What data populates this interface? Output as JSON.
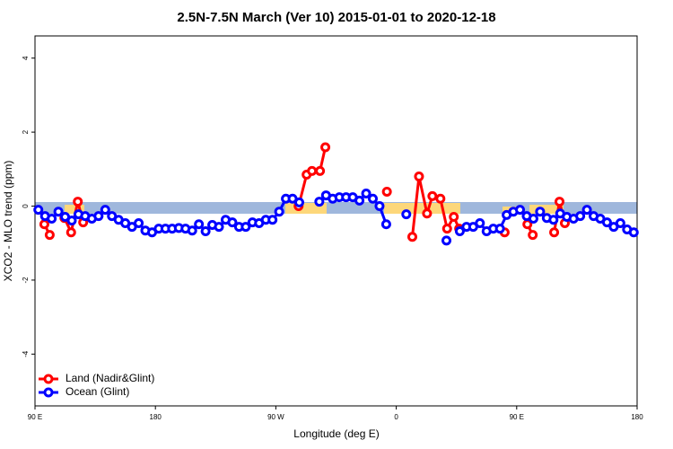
{
  "chart_data": {
    "type": "line",
    "title": "2.5N-7.5N March (Ver 10)   2015-01-01 to 2020-12-18",
    "x_label": "Longitude (deg E)",
    "y_label": "XCO2 - MLO trend (ppm)",
    "xlim": [
      90,
      540
    ],
    "xticks": [
      {
        "value": 90,
        "label": "90 E"
      },
      180,
      {
        "value": 270,
        "label": "90 W"
      },
      {
        "value": 360,
        "label": "0"
      },
      {
        "value": 450,
        "label": "90 E"
      },
      {
        "value": 540,
        "label": "180"
      }
    ],
    "ylim": [
      -5.4,
      4.6
    ],
    "yticks": [
      -4,
      -2,
      0,
      2,
      4
    ],
    "legend": "bottom-left",
    "series": [
      {
        "name": "Land (Nadir&Glint)",
        "color": "#ff0000",
        "x": [
          97,
          101,
          104,
          112,
          117,
          122,
          126,
          200,
          287,
          293,
          297,
          303,
          307,
          330,
          353,
          362,
          372,
          377,
          383,
          387,
          393,
          398,
          403,
          407,
          420,
          441,
          450,
          458,
          462,
          470,
          478,
          482,
          486
        ],
        "values": [
          -0.49,
          -0.78,
          null,
          -0.32,
          -0.71,
          0.12,
          -0.44,
          null,
          0,
          0.85,
          0.95,
          0.95,
          1.59,
          null,
          0.39,
          null,
          -0.83,
          0.8,
          -0.2,
          0.27,
          0.2,
          -0.61,
          -0.29,
          -0.61,
          null,
          -0.71,
          null,
          -0.49,
          -0.78,
          null,
          -0.71,
          0.12,
          -0.46
        ]
      },
      {
        "name": "Ocean (Glint)",
        "color": "#0000ff",
        "x": [
          92.5,
          97.5,
          102.5,
          107.5,
          112.5,
          117.5,
          122.5,
          127.5,
          132.5,
          137.5,
          142.5,
          147.5,
          152.5,
          157.5,
          162.5,
          167.5,
          172.5,
          177.5,
          182.5,
          187.5,
          192.5,
          197.5,
          202.5,
          207.5,
          212.5,
          217.5,
          222.5,
          227.5,
          232.5,
          237.5,
          242.5,
          247.5,
          252.5,
          257.5,
          262.5,
          267.5,
          272.5,
          277.5,
          282.5,
          287.5,
          292.5,
          297.5,
          302.5,
          307.5,
          312.5,
          317.5,
          322.5,
          327.5,
          332.5,
          337.5,
          342.5,
          347.5,
          352.5,
          357.5,
          362.5,
          367.5,
          372.5,
          377.5,
          382.5,
          387.5,
          392.5,
          397.5,
          402.5,
          407.5,
          412.5,
          417.5,
          422.5,
          427.5,
          432.5,
          437.5,
          442.5,
          447.5,
          452.5,
          457.5,
          462.5,
          467.5,
          472.5,
          477.5,
          482.5,
          487.5,
          492.5,
          497.5,
          502.5,
          507.5,
          512.5,
          517.5,
          522.5,
          527.5,
          532.5,
          537.5
        ],
        "values": [
          -0.1,
          -0.27,
          -0.34,
          -0.15,
          -0.29,
          -0.39,
          -0.22,
          -0.27,
          -0.34,
          -0.27,
          -0.1,
          -0.27,
          -0.37,
          -0.46,
          -0.56,
          -0.46,
          -0.66,
          -0.71,
          -0.61,
          -0.61,
          -0.61,
          -0.59,
          -0.61,
          -0.66,
          -0.49,
          -0.68,
          -0.51,
          -0.56,
          -0.37,
          -0.44,
          -0.56,
          -0.56,
          -0.44,
          -0.46,
          -0.37,
          -0.37,
          -0.15,
          0.2,
          0.2,
          0.1,
          null,
          null,
          0.12,
          0.29,
          0.2,
          0.24,
          0.24,
          0.24,
          0.15,
          0.34,
          0.2,
          0,
          -0.49,
          null,
          null,
          -0.22,
          null,
          null,
          null,
          null,
          null,
          -0.93,
          null,
          -0.68,
          -0.56,
          -0.56,
          -0.46,
          -0.68,
          -0.61,
          -0.61,
          -0.24,
          -0.15,
          -0.1,
          -0.27,
          -0.34,
          -0.15,
          -0.32,
          -0.37,
          -0.2,
          -0.29,
          -0.34,
          -0.27,
          -0.1,
          -0.27,
          -0.34,
          -0.44,
          -0.56,
          -0.46,
          -0.63,
          -0.71
        ]
      }
    ]
  }
}
